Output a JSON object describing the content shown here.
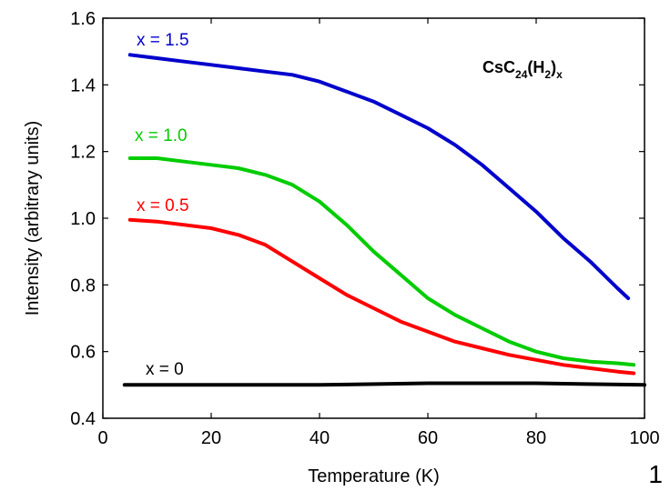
{
  "chart_data": {
    "type": "line",
    "title": "",
    "xlabel": "Temperature (K)",
    "ylabel": "Intensity (arbitrary units)",
    "xlim": [
      0,
      100
    ],
    "ylim": [
      0.4,
      1.6
    ],
    "xticks": [
      0,
      20,
      40,
      60,
      80,
      100
    ],
    "yticks": [
      0.4,
      0.6,
      0.8,
      1.0,
      1.2,
      1.4,
      1.6
    ],
    "ytick_labels": [
      "0.4",
      "0.6",
      "0.8",
      "1.0",
      "1.2",
      "1.4",
      "1.6"
    ],
    "grid": false,
    "annotation": {
      "base": "CsC",
      "sub1": "24",
      "mid": "(H",
      "sub2": "2",
      "close": ")",
      "sub3": "x"
    },
    "series": [
      {
        "name": "x = 1.5",
        "color": "#0000cc",
        "x": [
          5,
          10,
          15,
          20,
          25,
          30,
          35,
          40,
          45,
          50,
          55,
          60,
          65,
          70,
          75,
          80,
          85,
          90,
          95,
          97
        ],
        "y": [
          1.49,
          1.48,
          1.47,
          1.46,
          1.45,
          1.44,
          1.43,
          1.41,
          1.38,
          1.35,
          1.31,
          1.27,
          1.22,
          1.16,
          1.09,
          1.02,
          0.94,
          0.87,
          0.79,
          0.76
        ]
      },
      {
        "name": "x = 1.0",
        "color": "#00cc00",
        "x": [
          5,
          10,
          15,
          20,
          25,
          30,
          35,
          40,
          45,
          50,
          55,
          60,
          65,
          70,
          75,
          80,
          85,
          90,
          95,
          98
        ],
        "y": [
          1.18,
          1.18,
          1.17,
          1.16,
          1.15,
          1.13,
          1.1,
          1.05,
          0.98,
          0.9,
          0.83,
          0.76,
          0.71,
          0.67,
          0.63,
          0.6,
          0.58,
          0.57,
          0.565,
          0.56
        ]
      },
      {
        "name": "x = 0.5",
        "color": "#ff0000",
        "x": [
          5,
          10,
          15,
          20,
          25,
          30,
          35,
          40,
          45,
          50,
          55,
          60,
          65,
          70,
          75,
          80,
          85,
          90,
          95,
          98
        ],
        "y": [
          0.995,
          0.99,
          0.98,
          0.97,
          0.95,
          0.92,
          0.87,
          0.82,
          0.77,
          0.73,
          0.69,
          0.66,
          0.63,
          0.61,
          0.59,
          0.575,
          0.56,
          0.55,
          0.54,
          0.535
        ]
      },
      {
        "name": "x = 0",
        "color": "#000000",
        "x": [
          4,
          20,
          40,
          60,
          80,
          100
        ],
        "y": [
          0.5,
          0.5,
          0.5,
          0.505,
          0.505,
          0.5
        ]
      }
    ]
  },
  "page_number": "1"
}
